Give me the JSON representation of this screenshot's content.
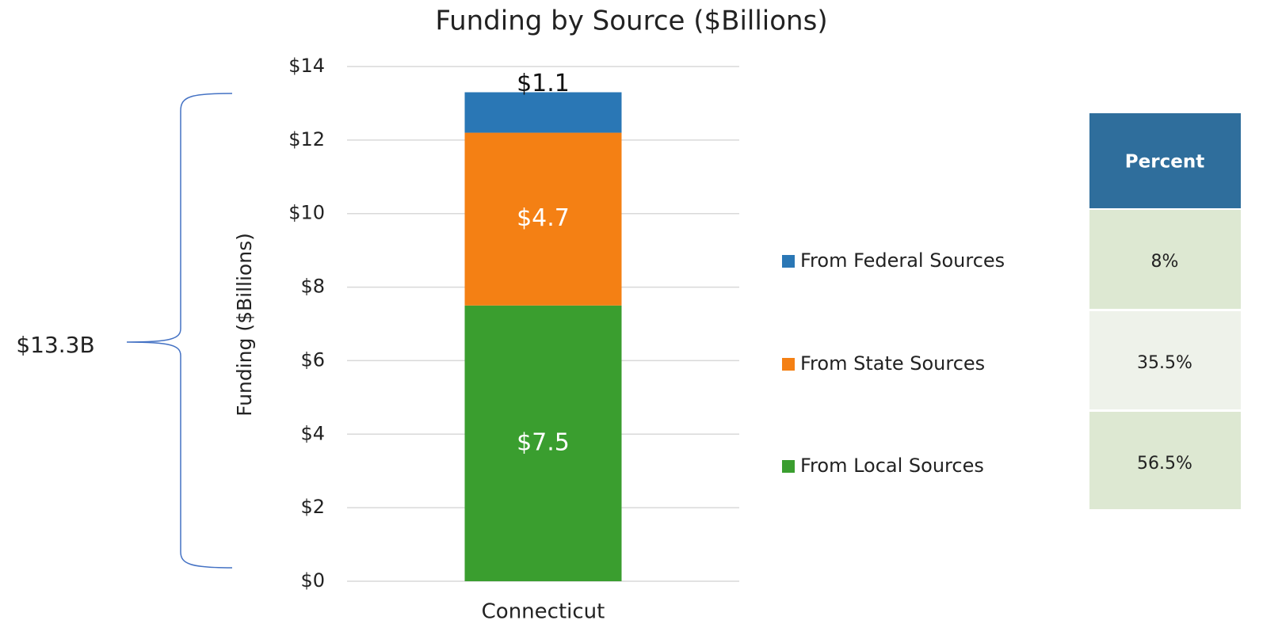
{
  "chart_data": {
    "type": "stacked_bar",
    "title": "Funding by Source ($Billions)",
    "y_label": "Funding ($Billions)",
    "categories": [
      "Connecticut"
    ],
    "series": [
      {
        "name": "From Local Sources",
        "color": "#3a9e2f",
        "values": [
          7.5
        ],
        "value_labels": [
          "$7.5"
        ]
      },
      {
        "name": "From State Sources",
        "color": "#f48014",
        "values": [
          4.7
        ],
        "value_labels": [
          "$4.7"
        ]
      },
      {
        "name": "From Federal Sources",
        "color": "#2a77b5",
        "values": [
          1.1
        ],
        "value_labels": [
          "$1.1"
        ]
      }
    ],
    "ylim": [
      0,
      14
    ],
    "yticks": [
      {
        "value": 0,
        "label": "$0"
      },
      {
        "value": 2,
        "label": "$2"
      },
      {
        "value": 4,
        "label": "$4"
      },
      {
        "value": 6,
        "label": "$6"
      },
      {
        "value": 8,
        "label": "$8"
      },
      {
        "value": 10,
        "label": "$10"
      },
      {
        "value": 12,
        "label": "$12"
      },
      {
        "value": 14,
        "label": "$14"
      }
    ],
    "grid": true,
    "annotation": "$13.3B"
  },
  "table": {
    "header": "Percent",
    "rows": [
      "8%",
      "35.5%",
      "56.5%"
    ]
  }
}
